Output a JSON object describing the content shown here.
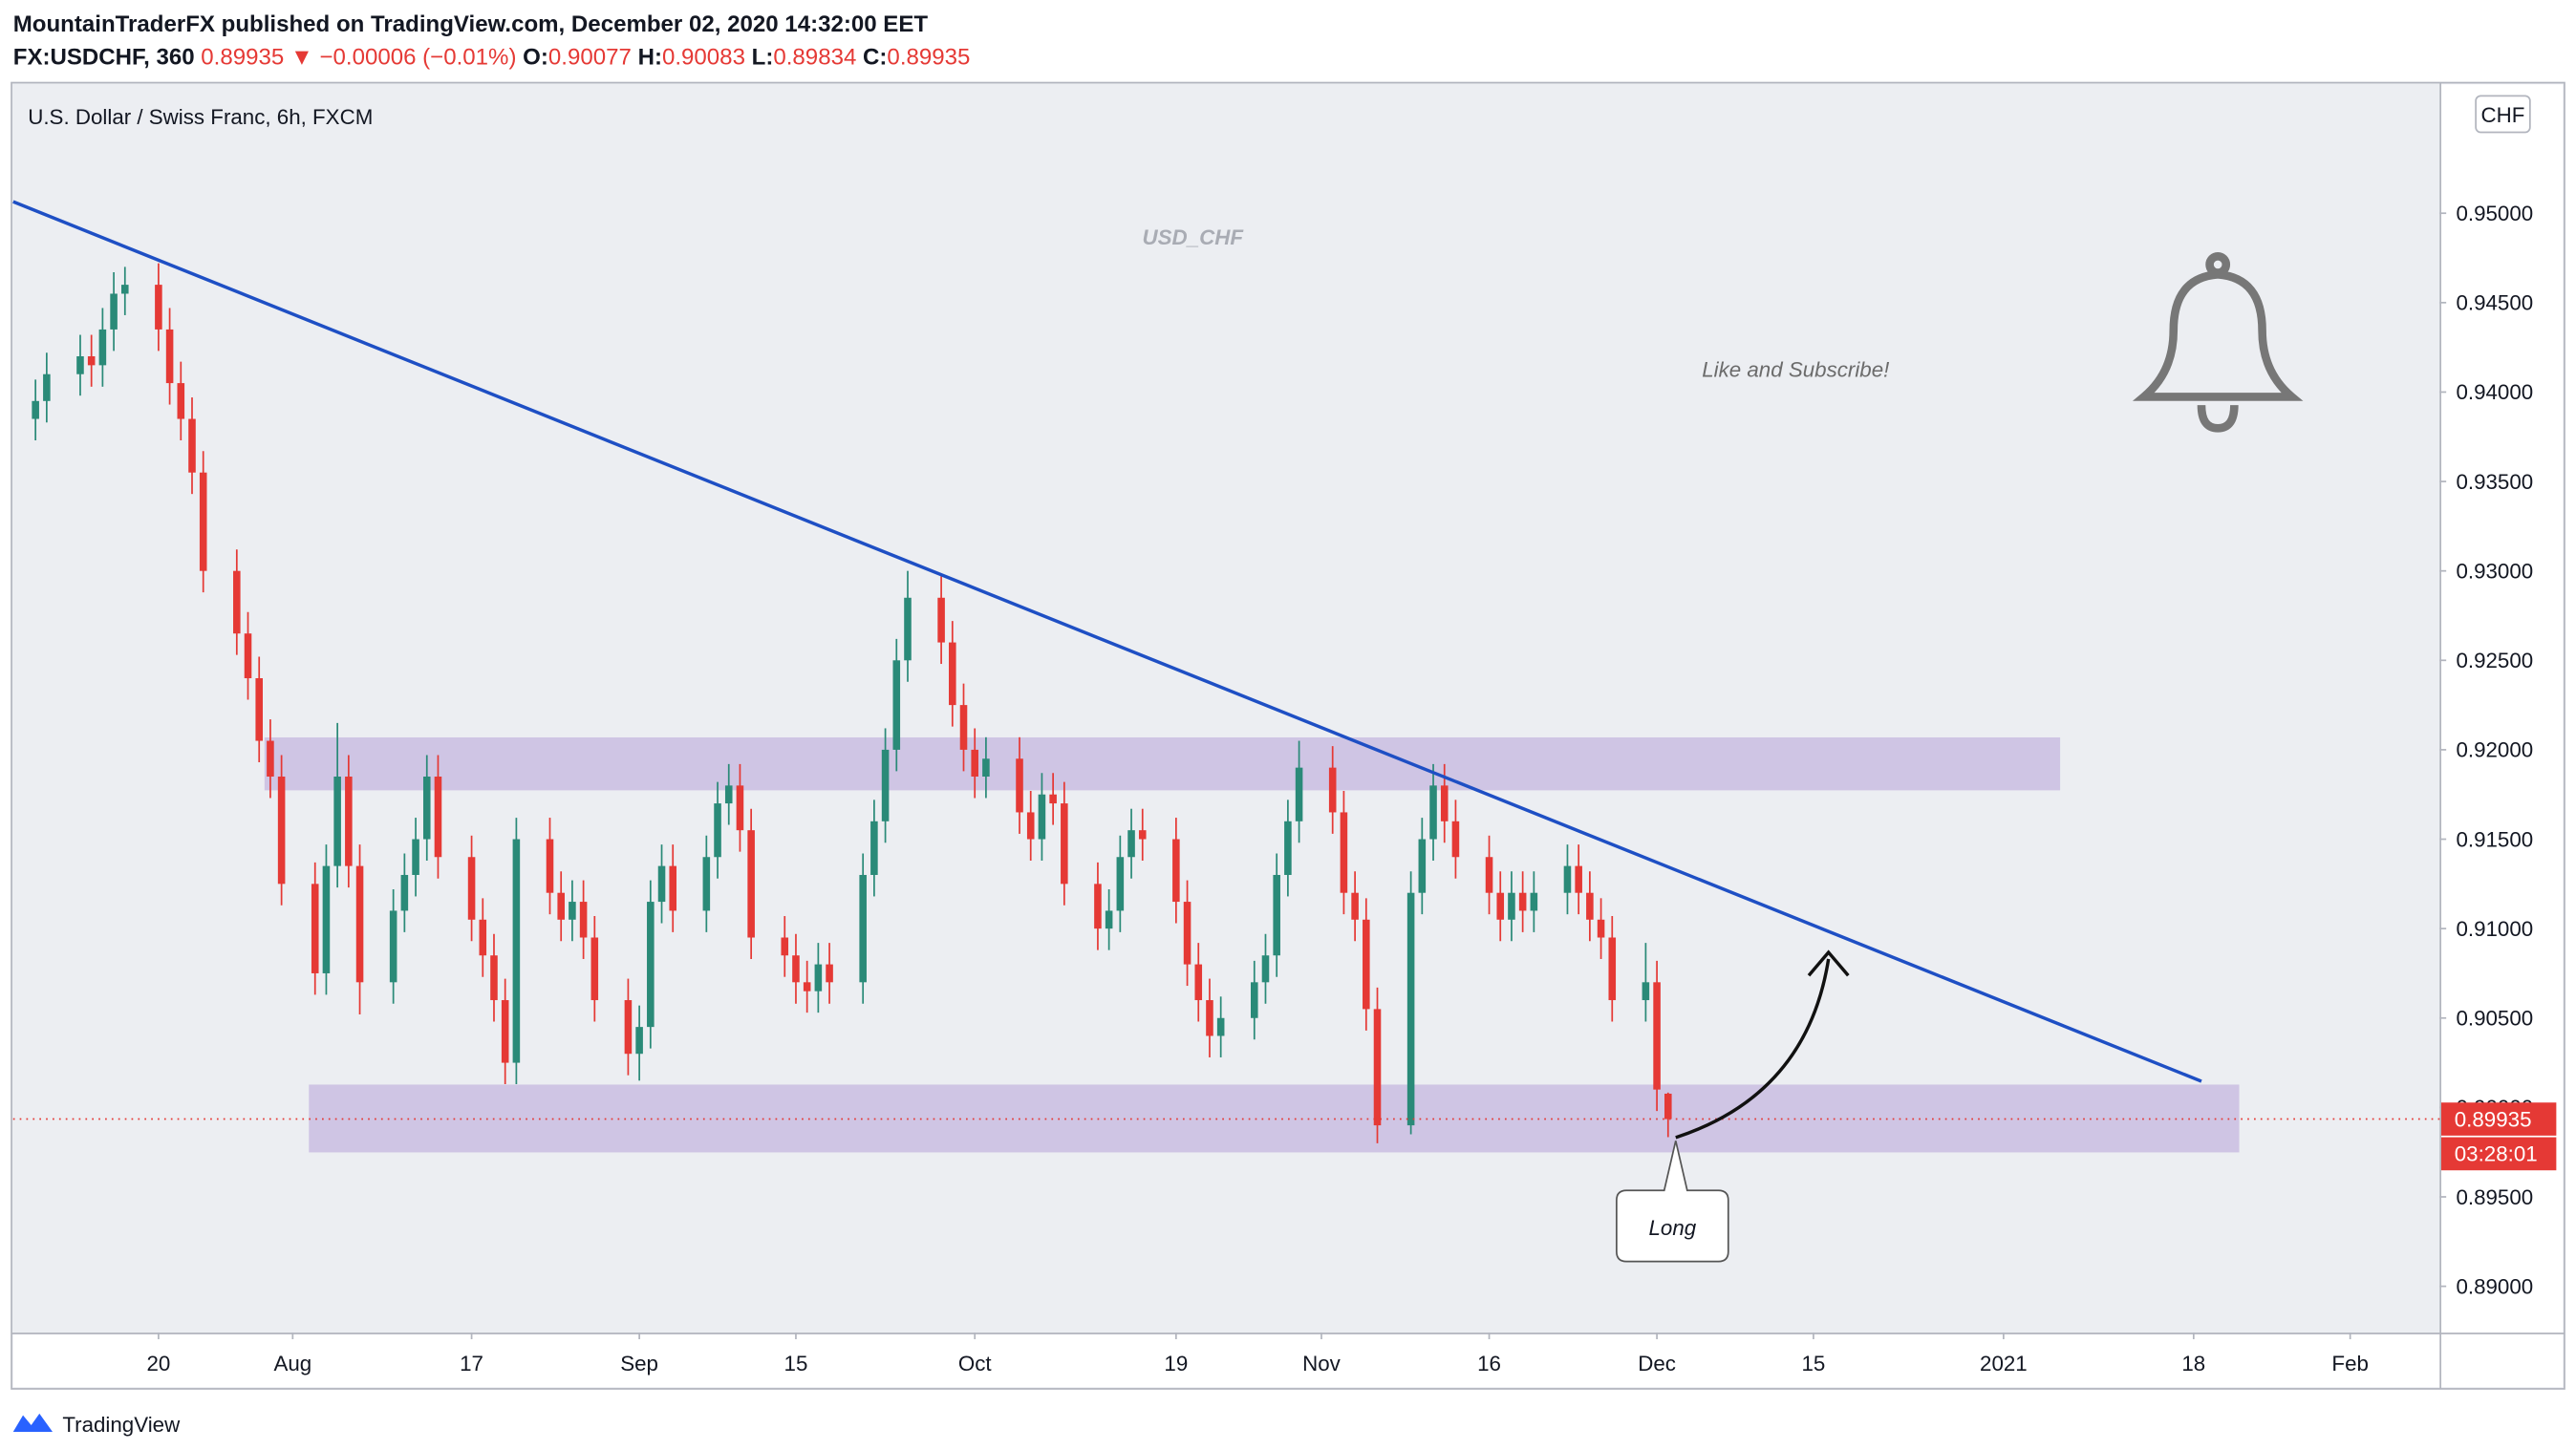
{
  "header": {
    "publisher": "MountainTraderFX published on TradingView.com, December 02, 2020 14:32:00 EET",
    "symbol": "FX:USDCHF, 360",
    "change": "▼ −0.00006 (−0.01%)",
    "ohlc_labels": [
      "O:",
      "H:",
      "L:",
      "C:"
    ]
  },
  "footer": {
    "brand": "TradingView"
  },
  "chart_data": {
    "type": "candlestick",
    "title": "U.S. Dollar / Swiss Franc, 6h, FXCM",
    "currency": "CHF",
    "annotations": {
      "watermark": "USD_CHF",
      "cta": "Like and Subscribe!",
      "callout": "Long",
      "countdown": "03:28:01"
    },
    "up_color": "#2a8a78",
    "down_color": "#e53935",
    "x": [
      "2020-07-09",
      "2020-07-10",
      "2020-07-13",
      "2020-07-14",
      "2020-07-15",
      "2020-07-16",
      "2020-07-17",
      "2020-07-20",
      "2020-07-21",
      "2020-07-22",
      "2020-07-23",
      "2020-07-24",
      "2020-07-27",
      "2020-07-28",
      "2020-07-29",
      "2020-07-30",
      "2020-07-31",
      "2020-08-03",
      "2020-08-04",
      "2020-08-05",
      "2020-08-06",
      "2020-08-07",
      "2020-08-10",
      "2020-08-11",
      "2020-08-12",
      "2020-08-13",
      "2020-08-14",
      "2020-08-17",
      "2020-08-18",
      "2020-08-19",
      "2020-08-20",
      "2020-08-21",
      "2020-08-24",
      "2020-08-25",
      "2020-08-26",
      "2020-08-27",
      "2020-08-28",
      "2020-08-31",
      "2020-09-01",
      "2020-09-02",
      "2020-09-03",
      "2020-09-04",
      "2020-09-07",
      "2020-09-08",
      "2020-09-09",
      "2020-09-10",
      "2020-09-11",
      "2020-09-14",
      "2020-09-15",
      "2020-09-16",
      "2020-09-17",
      "2020-09-18",
      "2020-09-21",
      "2020-09-22",
      "2020-09-23",
      "2020-09-24",
      "2020-09-25",
      "2020-09-28",
      "2020-09-29",
      "2020-09-30",
      "2020-10-01",
      "2020-10-02",
      "2020-10-05",
      "2020-10-06",
      "2020-10-07",
      "2020-10-08",
      "2020-10-09",
      "2020-10-12",
      "2020-10-13",
      "2020-10-14",
      "2020-10-15",
      "2020-10-16",
      "2020-10-19",
      "2020-10-20",
      "2020-10-21",
      "2020-10-22",
      "2020-10-23",
      "2020-10-26",
      "2020-10-27",
      "2020-10-28",
      "2020-10-29",
      "2020-10-30",
      "2020-11-02",
      "2020-11-03",
      "2020-11-04",
      "2020-11-05",
      "2020-11-06",
      "2020-11-09",
      "2020-11-10",
      "2020-11-11",
      "2020-11-12",
      "2020-11-13",
      "2020-11-16",
      "2020-11-17",
      "2020-11-18",
      "2020-11-19",
      "2020-11-20",
      "2020-11-23",
      "2020-11-24",
      "2020-11-25",
      "2020-11-26",
      "2020-11-27",
      "2020-11-30",
      "2020-12-01",
      "2020-12-02"
    ],
    "open": [
      0.9385,
      0.9395,
      0.941,
      0.942,
      0.9415,
      0.9435,
      0.9455,
      0.946,
      0.9435,
      0.9405,
      0.9385,
      0.9355,
      0.93,
      0.9265,
      0.924,
      0.9205,
      0.9185,
      0.9125,
      0.9075,
      0.9135,
      0.9185,
      0.9135,
      0.907,
      0.911,
      0.913,
      0.915,
      0.9185,
      0.914,
      0.9105,
      0.9085,
      0.906,
      0.9025,
      0.915,
      0.912,
      0.9105,
      0.9115,
      0.9095,
      0.906,
      0.903,
      0.9045,
      0.9115,
      0.9135,
      0.911,
      0.914,
      0.917,
      0.918,
      0.9155,
      0.9095,
      0.9085,
      0.907,
      0.9065,
      0.908,
      0.907,
      0.913,
      0.916,
      0.92,
      0.925,
      0.9285,
      0.926,
      0.9225,
      0.92,
      0.9185,
      0.9195,
      0.9165,
      0.915,
      0.9175,
      0.917,
      0.9125,
      0.91,
      0.911,
      0.914,
      0.9155,
      0.915,
      0.9115,
      0.908,
      0.906,
      0.904,
      0.905,
      0.907,
      0.9085,
      0.913,
      0.916,
      0.919,
      0.9165,
      0.912,
      0.9105,
      0.9055,
      0.899,
      0.912,
      0.915,
      0.918,
      0.916,
      0.914,
      0.912,
      0.9105,
      0.912,
      0.911,
      0.912,
      0.9135,
      0.912,
      0.9105,
      0.9095,
      0.906,
      0.907,
      0.90077
    ],
    "high": [
      0.9407,
      0.9422,
      0.9432,
      0.9432,
      0.9447,
      0.9467,
      0.947,
      0.9472,
      0.9447,
      0.9417,
      0.9397,
      0.9367,
      0.9312,
      0.9277,
      0.9252,
      0.9217,
      0.9197,
      0.9137,
      0.9147,
      0.9215,
      0.9197,
      0.9147,
      0.9122,
      0.9142,
      0.9162,
      0.9197,
      0.9197,
      0.9152,
      0.9117,
      0.9097,
      0.9072,
      0.9162,
      0.9162,
      0.9132,
      0.9127,
      0.9127,
      0.9107,
      0.9072,
      0.9057,
      0.9127,
      0.9147,
      0.9147,
      0.9152,
      0.9182,
      0.9192,
      0.9192,
      0.9167,
      0.9107,
      0.9097,
      0.9082,
      0.9092,
      0.9092,
      0.9142,
      0.9172,
      0.9212,
      0.9262,
      0.93,
      0.9297,
      0.9272,
      0.9237,
      0.9212,
      0.9207,
      0.9207,
      0.9177,
      0.9187,
      0.9187,
      0.9182,
      0.9137,
      0.9122,
      0.9152,
      0.9167,
      0.9167,
      0.9162,
      0.9127,
      0.9092,
      0.9072,
      0.9062,
      0.9082,
      0.9097,
      0.9142,
      0.9172,
      0.9205,
      0.9202,
      0.9177,
      0.9132,
      0.9117,
      0.9067,
      0.9132,
      0.9162,
      0.9192,
      0.9192,
      0.9172,
      0.9152,
      0.9132,
      0.9132,
      0.9132,
      0.9132,
      0.9147,
      0.9147,
      0.9132,
      0.9117,
      0.9107,
      0.9092,
      0.9082,
      0.90083
    ],
    "low": [
      0.9373,
      0.9383,
      0.9398,
      0.9403,
      0.9403,
      0.9423,
      0.9443,
      0.9423,
      0.9393,
      0.9373,
      0.9343,
      0.9288,
      0.9253,
      0.9228,
      0.9193,
      0.9173,
      0.9113,
      0.9063,
      0.9063,
      0.9123,
      0.9123,
      0.9052,
      0.9058,
      0.9098,
      0.9118,
      0.9138,
      0.9128,
      0.9093,
      0.9073,
      0.9048,
      0.9013,
      0.9013,
      0.9108,
      0.9093,
      0.9093,
      0.9083,
      0.9048,
      0.9018,
      0.9015,
      0.9033,
      0.9103,
      0.9098,
      0.9098,
      0.9128,
      0.9158,
      0.9143,
      0.9083,
      0.9073,
      0.9058,
      0.9053,
      0.9053,
      0.9058,
      0.9058,
      0.9118,
      0.9148,
      0.9188,
      0.9238,
      0.9248,
      0.9213,
      0.9188,
      0.9173,
      0.9173,
      0.9153,
      0.9138,
      0.9138,
      0.9158,
      0.9113,
      0.9088,
      0.9088,
      0.9098,
      0.9128,
      0.9138,
      0.9103,
      0.9068,
      0.9048,
      0.9028,
      0.9028,
      0.9038,
      0.9058,
      0.9073,
      0.9118,
      0.9148,
      0.9153,
      0.9108,
      0.9093,
      0.9043,
      0.898,
      0.8985,
      0.9108,
      0.9138,
      0.9148,
      0.9128,
      0.9108,
      0.9093,
      0.9093,
      0.9098,
      0.9098,
      0.9108,
      0.9108,
      0.9093,
      0.9083,
      0.9048,
      0.9048,
      0.8998,
      0.89834
    ],
    "close": [
      0.9395,
      0.941,
      0.942,
      0.9415,
      0.9435,
      0.9455,
      0.946,
      0.9435,
      0.9405,
      0.9385,
      0.9355,
      0.93,
      0.9265,
      0.924,
      0.9205,
      0.9185,
      0.9125,
      0.9075,
      0.9135,
      0.9185,
      0.9135,
      0.907,
      0.911,
      0.913,
      0.915,
      0.9185,
      0.914,
      0.9105,
      0.9085,
      0.906,
      0.9025,
      0.915,
      0.912,
      0.9105,
      0.9115,
      0.9095,
      0.906,
      0.903,
      0.9045,
      0.9115,
      0.9135,
      0.911,
      0.914,
      0.917,
      0.918,
      0.9155,
      0.9095,
      0.9085,
      0.907,
      0.9065,
      0.908,
      0.907,
      0.913,
      0.916,
      0.92,
      0.925,
      0.9285,
      0.926,
      0.9225,
      0.92,
      0.9185,
      0.9195,
      0.9165,
      0.915,
      0.9175,
      0.917,
      0.9125,
      0.91,
      0.911,
      0.914,
      0.9155,
      0.915,
      0.9115,
      0.908,
      0.906,
      0.904,
      0.905,
      0.907,
      0.9085,
      0.913,
      0.916,
      0.919,
      0.9165,
      0.912,
      0.9105,
      0.9055,
      0.899,
      0.912,
      0.915,
      0.918,
      0.916,
      0.914,
      0.912,
      0.9105,
      0.912,
      0.911,
      0.912,
      0.9135,
      0.912,
      0.9105,
      0.9095,
      0.906,
      0.907,
      0.901,
      0.89935
    ],
    "xlim": [
      "2020-07-07",
      "2021-02-09"
    ],
    "xticks": [
      {
        "value": "2020-07-20",
        "label": "20"
      },
      {
        "value": "2020-08-01",
        "label": "Aug"
      },
      {
        "value": "2020-08-17",
        "label": "17"
      },
      {
        "value": "2020-09-01",
        "label": "Sep"
      },
      {
        "value": "2020-09-15",
        "label": "15"
      },
      {
        "value": "2020-10-01",
        "label": "Oct"
      },
      {
        "value": "2020-10-19",
        "label": "19"
      },
      {
        "value": "2020-11-01",
        "label": "Nov"
      },
      {
        "value": "2020-11-16",
        "label": "16"
      },
      {
        "value": "2020-12-01",
        "label": "Dec"
      },
      {
        "value": "2020-12-15",
        "label": "15"
      },
      {
        "value": "2021-01-01",
        "label": "2021"
      },
      {
        "value": "2021-01-18",
        "label": "18"
      },
      {
        "value": "2021-02-01",
        "label": "Feb"
      }
    ],
    "ylim": [
      0.88741,
      0.95656
    ],
    "yticks": [
      {
        "value": 0.89,
        "label": "0.89000"
      },
      {
        "value": 0.895,
        "label": "0.89500"
      },
      {
        "value": 0.9,
        "label": "0.90000"
      },
      {
        "value": 0.905,
        "label": "0.90500"
      },
      {
        "value": 0.91,
        "label": "0.91000"
      },
      {
        "value": 0.915,
        "label": "0.91500"
      },
      {
        "value": 0.92,
        "label": "0.92000"
      },
      {
        "value": 0.925,
        "label": "0.92500"
      },
      {
        "value": 0.93,
        "label": "0.93000"
      },
      {
        "value": 0.935,
        "label": "0.93500"
      },
      {
        "value": 0.94,
        "label": "0.94000"
      },
      {
        "value": 0.945,
        "label": "0.94500"
      },
      {
        "value": 0.95,
        "label": "0.95000"
      }
    ],
    "grid": false
  }
}
